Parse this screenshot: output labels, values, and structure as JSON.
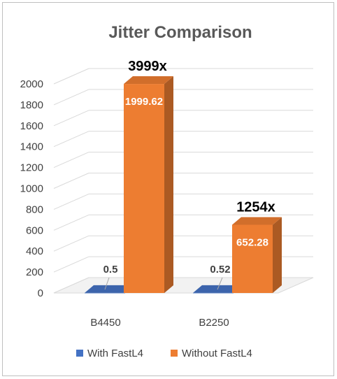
{
  "chart_data": {
    "type": "bar",
    "title": "Jitter Comparison",
    "categories": [
      "B4450",
      "B2250"
    ],
    "series": [
      {
        "name": "With FastL4",
        "values": [
          0.5,
          0.52
        ],
        "color": "#4472c4",
        "labels": [
          "0.5",
          "0.52"
        ]
      },
      {
        "name": "Without FastL4",
        "values": [
          1999.62,
          652.28
        ],
        "color": "#ed7d31",
        "labels": [
          "1999.62",
          "652.28"
        ]
      }
    ],
    "annotations": [
      "3999x",
      "1254x"
    ],
    "ylim": [
      0,
      2000
    ],
    "yticks": [
      "0",
      "200",
      "400",
      "600",
      "800",
      "1000",
      "1200",
      "1400",
      "1600",
      "1800",
      "2000"
    ],
    "grid": true,
    "legend": "bottom",
    "style": "3d-clustered-column"
  }
}
